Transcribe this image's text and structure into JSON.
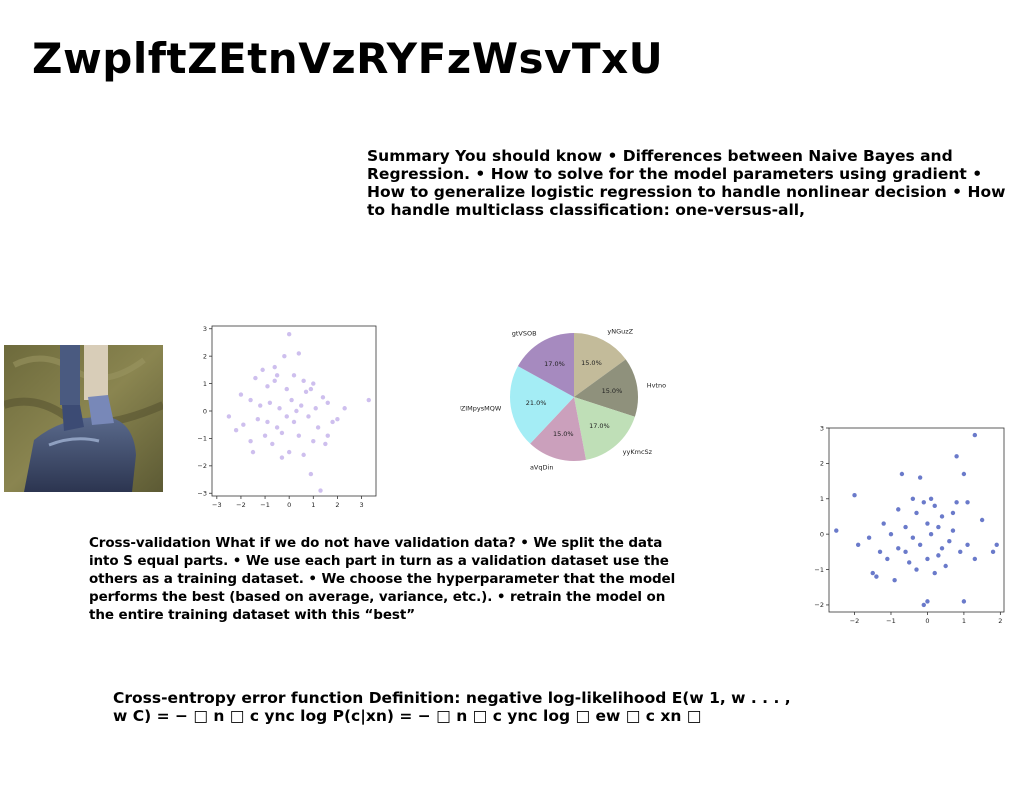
{
  "slide": {
    "title": "ZwplftZEtnVzRYFzWsvTxU",
    "summary": "Summary You should know • Differences between Naive Bayes and Regression. • How to solve for the model parameters using gradient • How to generalize logistic regression to handle nonlinear decision • How to handle multiclass classification: one-versus-all,",
    "cross_validation": "Cross-validation What if we do not have validation data? • We split the data into S equal parts. • We use each part in turn as a validation dataset use the others as a training dataset. • We choose the hyperparameter that the model performs the best (based on average, variance, etc.). • retrain the model on the entire training dataset with this “best”",
    "cross_entropy": "Cross-entropy error function Definition: negative log-likelihood E(w 1, w . . . , w C) = − □ n □ c ync log P(c|xn) = − □ n □ c ync log □ ew □ c xn □"
  },
  "chart_data": [
    {
      "type": "scatter",
      "color": "#c9b8ec",
      "xlim": [
        -3.2,
        3.6
      ],
      "ylim": [
        -3.1,
        3.1
      ],
      "xticks": [
        -3,
        -2,
        -1,
        0,
        1,
        2,
        3
      ],
      "yticks": [
        -3,
        -2,
        -1,
        0,
        1,
        2,
        3
      ],
      "xtick_labels": [
        "−3",
        "−2",
        "−1",
        "0",
        "1",
        "2",
        "3"
      ],
      "ytick_labels": [
        "−3",
        "−2",
        "−1",
        "0",
        "1",
        "2",
        "3"
      ],
      "points": [
        [
          0.0,
          2.8
        ],
        [
          0.4,
          2.1
        ],
        [
          -0.2,
          2.0
        ],
        [
          -0.6,
          1.6
        ],
        [
          -1.4,
          1.2
        ],
        [
          -1.1,
          1.5
        ],
        [
          -0.5,
          1.3
        ],
        [
          0.2,
          1.3
        ],
        [
          1.0,
          1.0
        ],
        [
          0.6,
          1.1
        ],
        [
          -0.9,
          0.9
        ],
        [
          -0.6,
          1.1
        ],
        [
          -0.1,
          0.8
        ],
        [
          0.7,
          0.7
        ],
        [
          0.9,
          0.8
        ],
        [
          1.4,
          0.5
        ],
        [
          1.6,
          0.3
        ],
        [
          -1.6,
          0.4
        ],
        [
          -1.2,
          0.2
        ],
        [
          -0.8,
          0.3
        ],
        [
          -0.4,
          0.1
        ],
        [
          0.1,
          0.4
        ],
        [
          0.5,
          0.2
        ],
        [
          1.1,
          0.1
        ],
        [
          2.0,
          -0.3
        ],
        [
          3.3,
          0.4
        ],
        [
          -2.5,
          -0.2
        ],
        [
          -1.9,
          -0.5
        ],
        [
          -1.3,
          -0.3
        ],
        [
          -0.9,
          -0.4
        ],
        [
          -0.5,
          -0.6
        ],
        [
          0.2,
          -0.4
        ],
        [
          0.8,
          -0.2
        ],
        [
          1.2,
          -0.6
        ],
        [
          -1.6,
          -1.1
        ],
        [
          -1.0,
          -0.9
        ],
        [
          -0.3,
          -0.8
        ],
        [
          0.4,
          -0.9
        ],
        [
          1.0,
          -1.1
        ],
        [
          1.6,
          -0.9
        ],
        [
          -2.2,
          -0.7
        ],
        [
          -1.5,
          -1.5
        ],
        [
          -0.7,
          -1.2
        ],
        [
          0.0,
          -1.5
        ],
        [
          0.6,
          -1.6
        ],
        [
          0.9,
          -2.3
        ],
        [
          1.3,
          -2.9
        ],
        [
          -0.3,
          -1.7
        ],
        [
          1.5,
          -1.2
        ],
        [
          -0.1,
          -0.2
        ],
        [
          0.3,
          0.0
        ],
        [
          -2.0,
          0.6
        ],
        [
          2.3,
          0.1
        ],
        [
          1.8,
          -0.4
        ]
      ]
    },
    {
      "type": "pie",
      "categories": [
        "yNGuzZ",
        "Hvtno",
        "yyKmcSz",
        "aVqDin",
        "UZIMpysMQW",
        "gtVSOB"
      ],
      "values": [
        15.0,
        15.0,
        17.0,
        15.0,
        21.0,
        17.0
      ],
      "labels": [
        "15.0%",
        "15.0%",
        "17.0%",
        "15.0%",
        "21.0%",
        "17.0%"
      ],
      "colors": [
        "#c3bb9a",
        "#8f917c",
        "#bfdfb7",
        "#cba0bc",
        "#a4edf5",
        "#a68abf"
      ]
    },
    {
      "type": "scatter",
      "color": "#5a6bc4",
      "xlim": [
        -2.7,
        2.1
      ],
      "ylim": [
        -2.2,
        3.0
      ],
      "xticks": [
        -2,
        -1,
        0,
        1,
        2
      ],
      "yticks": [
        -2,
        -1,
        0,
        1,
        2,
        3
      ],
      "xtick_labels": [
        "−2",
        "−1",
        "0",
        "1",
        "2"
      ],
      "ytick_labels": [
        "−2",
        "−1",
        "0",
        "1",
        "2",
        "3"
      ],
      "points": [
        [
          1.3,
          2.8
        ],
        [
          0.8,
          2.2
        ],
        [
          -0.7,
          1.7
        ],
        [
          -0.2,
          1.6
        ],
        [
          1.0,
          1.7
        ],
        [
          -2.0,
          1.1
        ],
        [
          -0.4,
          1.0
        ],
        [
          0.1,
          1.0
        ],
        [
          -0.1,
          0.9
        ],
        [
          0.2,
          0.8
        ],
        [
          0.8,
          0.9
        ],
        [
          1.1,
          0.9
        ],
        [
          -0.8,
          0.7
        ],
        [
          -0.3,
          0.6
        ],
        [
          0.4,
          0.5
        ],
        [
          0.7,
          0.6
        ],
        [
          -1.2,
          0.3
        ],
        [
          -0.6,
          0.2
        ],
        [
          0.0,
          0.3
        ],
        [
          0.3,
          0.2
        ],
        [
          1.5,
          0.4
        ],
        [
          -2.5,
          0.1
        ],
        [
          -1.6,
          -0.1
        ],
        [
          -1.0,
          0.0
        ],
        [
          -0.4,
          -0.1
        ],
        [
          0.1,
          0.0
        ],
        [
          0.6,
          -0.2
        ],
        [
          1.1,
          -0.3
        ],
        [
          -1.9,
          -0.3
        ],
        [
          -1.3,
          -0.5
        ],
        [
          -0.8,
          -0.4
        ],
        [
          -0.2,
          -0.3
        ],
        [
          0.4,
          -0.4
        ],
        [
          0.9,
          -0.5
        ],
        [
          1.8,
          -0.5
        ],
        [
          -1.4,
          -1.2
        ],
        [
          -1.1,
          -0.7
        ],
        [
          -0.5,
          -0.8
        ],
        [
          0.0,
          -0.7
        ],
        [
          0.5,
          -0.9
        ],
        [
          1.3,
          -0.7
        ],
        [
          -0.9,
          -1.3
        ],
        [
          -0.3,
          -1.0
        ],
        [
          0.2,
          -1.1
        ],
        [
          -0.1,
          -2.0
        ],
        [
          0.0,
          -1.9
        ],
        [
          1.0,
          -1.9
        ],
        [
          -1.5,
          -1.1
        ],
        [
          0.7,
          0.1
        ],
        [
          1.9,
          -0.3
        ],
        [
          -0.6,
          -0.5
        ],
        [
          0.3,
          -0.6
        ]
      ]
    }
  ]
}
